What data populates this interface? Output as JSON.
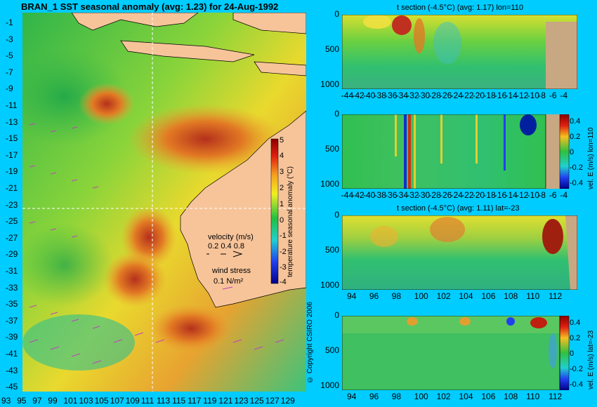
{
  "chart_data": [
    {
      "type": "heatmap",
      "title": "BRAN_1 SST seasonal anomaly (avg: 1.23) for 24-Aug-1992",
      "x_ticks": [
        "93",
        "95",
        "97",
        "99",
        "101",
        "103",
        "105",
        "107",
        "109",
        "111",
        "113",
        "115",
        "117",
        "119",
        "121",
        "123",
        "125",
        "127",
        "129"
      ],
      "y_ticks": [
        "-1",
        "-3",
        "-5",
        "-7",
        "-9",
        "-11",
        "-13",
        "-15",
        "-17",
        "-19",
        "-21",
        "-23",
        "-25",
        "-27",
        "-29",
        "-31",
        "-33",
        "-35",
        "-37",
        "-39",
        "-41",
        "-43",
        "-45"
      ],
      "xlim": [
        93,
        130
      ],
      "ylim": [
        -45,
        0
      ],
      "colorbar": {
        "label": "temperature seasonal anomaly (°C)",
        "ticks": [
          "5",
          "4",
          "3",
          "2",
          "1",
          "0",
          "-1",
          "-2",
          "-3",
          "-4"
        ],
        "range": [
          -4,
          5
        ]
      },
      "legend": {
        "velocity_label": "velocity (m/s)",
        "velocity_scale": "0.2 0.4 0.8",
        "wind_label": "wind stress",
        "wind_scale": "0.1 N/m²"
      },
      "crosshair": {
        "lon": 110,
        "lat": -23
      },
      "copyright": "© Copyright CSIRO 2006"
    },
    {
      "type": "heatmap",
      "title": "t section (-4.5°C) (avg: 1.17) lon=110",
      "x_ticks": [
        "-44",
        "-42",
        "-40",
        "-38",
        "-36",
        "-34",
        "-32",
        "-30",
        "-28",
        "-26",
        "-24",
        "-22",
        "-20",
        "-18",
        "-16",
        "-14",
        "-12",
        "-10",
        "-8",
        "-6",
        "-4"
      ],
      "y_ticks": [
        "0",
        "500",
        "1000"
      ],
      "xlim": [
        -45,
        -2
      ],
      "ylim": [
        1050,
        0
      ]
    },
    {
      "type": "heatmap",
      "title": "",
      "x_ticks": [
        "-44",
        "-42",
        "-40",
        "-38",
        "-36",
        "-34",
        "-32",
        "-30",
        "-28",
        "-26",
        "-24",
        "-22",
        "-20",
        "-18",
        "-16",
        "-14",
        "-12",
        "-10",
        "-8",
        "-6",
        "-4"
      ],
      "y_ticks": [
        "0",
        "500",
        "1000"
      ],
      "xlim": [
        -45,
        -2
      ],
      "ylim": [
        1050,
        0
      ],
      "colorbar": {
        "label": "vel. E (m/s) lon=110",
        "ticks": [
          "0.4",
          "0.2",
          "0",
          "-0.2",
          "-0.4"
        ],
        "range": [
          -0.45,
          0.45
        ]
      }
    },
    {
      "type": "heatmap",
      "title": "t section (-4.5°C) (avg: 1.11) lat=-23",
      "x_ticks": [
        "94",
        "96",
        "98",
        "100",
        "102",
        "104",
        "106",
        "108",
        "110",
        "112"
      ],
      "y_ticks": [
        "0",
        "500",
        "1000"
      ],
      "xlim": [
        93,
        114
      ],
      "ylim": [
        1050,
        0
      ]
    },
    {
      "type": "heatmap",
      "title": "",
      "x_ticks": [
        "94",
        "96",
        "98",
        "100",
        "102",
        "104",
        "106",
        "108",
        "110",
        "112"
      ],
      "y_ticks": [
        "0",
        "500",
        "1000"
      ],
      "xlim": [
        93,
        114
      ],
      "ylim": [
        1050,
        0
      ],
      "colorbar": {
        "label": "vel. E (m/s) lat=-23",
        "ticks": [
          "0.4",
          "0.2",
          "0",
          "-0.2",
          "-0.4"
        ],
        "range": [
          -0.45,
          0.45
        ]
      }
    }
  ]
}
